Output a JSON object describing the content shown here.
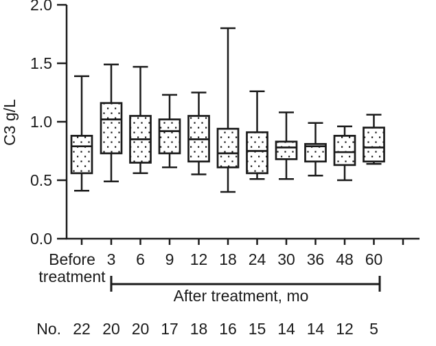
{
  "figure": {
    "background_color": "#ffffff",
    "ink_color": "#1a1a1a"
  },
  "chart_data": {
    "type": "box",
    "title": "",
    "ylabel": "C3 g/L",
    "xlabel": "",
    "ylim": [
      0.0,
      2.0
    ],
    "grid": false,
    "legend": null,
    "yticks": [
      {
        "value": 2.0,
        "label": "2.0"
      },
      {
        "value": 1.5,
        "label": "1.5"
      },
      {
        "value": 1.0,
        "label": "1.0"
      },
      {
        "value": 0.5,
        "label": "0.5"
      },
      {
        "value": 0.0,
        "label": "0.0"
      }
    ],
    "group_label": "After treatment, mo",
    "group_span_categories": [
      "3",
      "60"
    ],
    "n_label": "No.",
    "boxes": [
      {
        "label": "Before",
        "label2": "treatment",
        "n": 22,
        "min": 0.41,
        "q1": 0.56,
        "median": 0.79,
        "q3": 0.88,
        "max": 1.39
      },
      {
        "label": "3",
        "n": 20,
        "min": 0.49,
        "q1": 0.73,
        "median": 1.02,
        "q3": 1.16,
        "max": 1.49
      },
      {
        "label": "6",
        "n": 20,
        "min": 0.56,
        "q1": 0.65,
        "median": 0.85,
        "q3": 1.05,
        "max": 1.47
      },
      {
        "label": "9",
        "n": 17,
        "min": 0.61,
        "q1": 0.73,
        "median": 0.92,
        "q3": 1.02,
        "max": 1.23
      },
      {
        "label": "12",
        "n": 18,
        "min": 0.55,
        "q1": 0.66,
        "median": 0.85,
        "q3": 1.05,
        "max": 1.25
      },
      {
        "label": "18",
        "n": 16,
        "min": 0.4,
        "q1": 0.61,
        "median": 0.73,
        "q3": 0.94,
        "max": 1.8
      },
      {
        "label": "24",
        "n": 15,
        "min": 0.51,
        "q1": 0.56,
        "median": 0.75,
        "q3": 0.91,
        "max": 1.26
      },
      {
        "label": "30",
        "n": 14,
        "min": 0.51,
        "q1": 0.68,
        "median": 0.78,
        "q3": 0.83,
        "max": 1.08
      },
      {
        "label": "36",
        "n": 14,
        "min": 0.54,
        "q1": 0.66,
        "median": 0.79,
        "q3": 0.81,
        "max": 0.99
      },
      {
        "label": "48",
        "n": 12,
        "min": 0.5,
        "q1": 0.63,
        "median": 0.74,
        "q3": 0.88,
        "max": 0.96
      },
      {
        "label": "60",
        "n": 5,
        "min": 0.64,
        "q1": 0.66,
        "median": 0.78,
        "q3": 0.95,
        "max": 1.06
      }
    ]
  }
}
